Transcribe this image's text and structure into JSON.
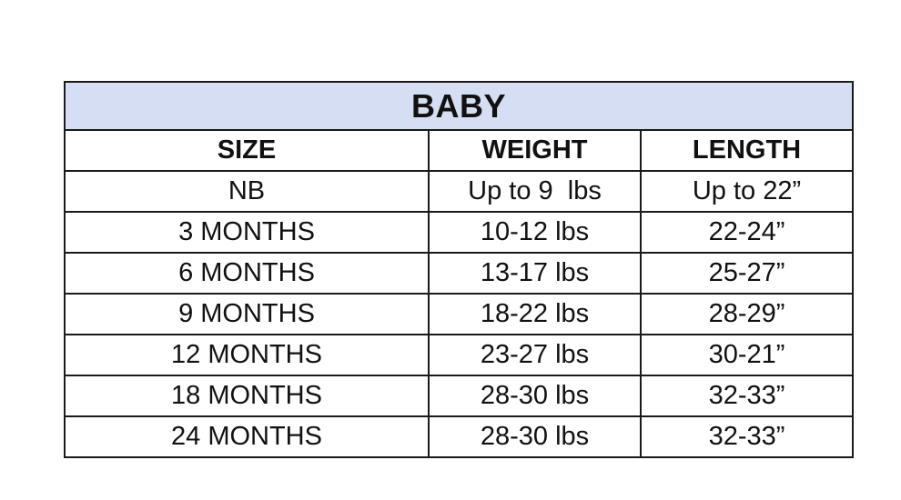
{
  "table": {
    "title": "BABY",
    "headers": [
      "SIZE",
      "WEIGHT",
      "LENGTH"
    ],
    "rows": [
      [
        "NB",
        "Up to 9  lbs",
        "Up to 22”"
      ],
      [
        "3 MONTHS",
        "10-12 lbs",
        "22-24”"
      ],
      [
        "6 MONTHS",
        "13-17 lbs",
        "25-27”"
      ],
      [
        "9 MONTHS",
        "18-22 lbs",
        "28-29”"
      ],
      [
        "12 MONTHS",
        "23-27 lbs",
        "30-21”"
      ],
      [
        "18 MONTHS",
        "28-30 lbs",
        "32-33”"
      ],
      [
        "24 MONTHS",
        "28-30 lbs",
        "32-33”"
      ]
    ],
    "title_background": "#d6def3",
    "border_color": "#1a1a1a"
  }
}
